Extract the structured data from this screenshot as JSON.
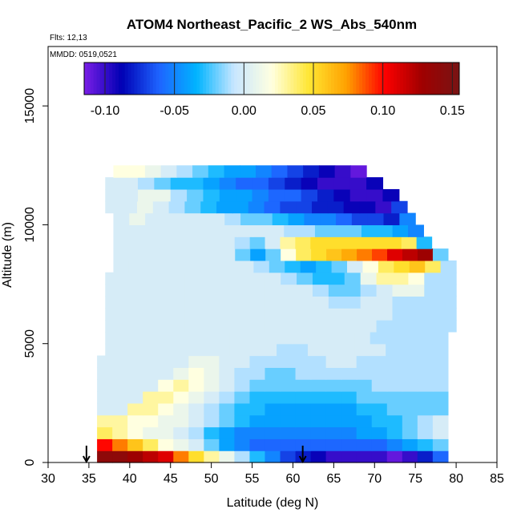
{
  "chart_data": {
    "type": "heatmap",
    "title": "ATOM4 Northeast_Pacific_2 WS_Abs_540nm",
    "notes": [
      "Flts: 12,13",
      "MMDD: 0519,0521"
    ],
    "xlabel": "Latitude (deg N)",
    "ylabel": "Altitude (m)",
    "xlim": [
      30,
      85
    ],
    "ylim": [
      0,
      17500
    ],
    "xticks": [
      30,
      35,
      40,
      45,
      50,
      55,
      60,
      65,
      70,
      75,
      80,
      85
    ],
    "yticks": [
      0,
      5000,
      10000,
      15000
    ],
    "colorbar": {
      "range": [
        -0.115,
        0.155
      ],
      "ticks": [
        -0.1,
        -0.05,
        0.0,
        0.05,
        0.1,
        0.15
      ],
      "tick_labels": [
        "-0.10",
        "-0.05",
        "0.00",
        "0.05",
        "0.10",
        "0.15"
      ],
      "colors": [
        "#7a1ee6",
        "#0000b4",
        "#1e64ff",
        "#00b4ff",
        "#c8e6ff",
        "#ffffe0",
        "#ffe632",
        "#ffa000",
        "#ff0000",
        "#a00000",
        "#781414"
      ]
    },
    "markers": [
      {
        "type": "arrow-down",
        "x": 34.7,
        "y": 0
      },
      {
        "type": "arrow-down",
        "x": 61.2,
        "y": 0
      }
    ],
    "rows": [
      {
        "y": 250,
        "xmin": 36,
        "xmax": 79,
        "values": [
          0.14,
          0.14,
          0.13,
          0.12,
          0.11,
          0.08,
          0.05,
          0.03,
          0.01,
          -0.01,
          -0.03,
          -0.05,
          -0.07,
          -0.08,
          -0.09,
          -0.1,
          -0.1,
          -0.1,
          -0.1,
          -0.11,
          -0.1,
          -0.08,
          -0.06
        ]
      },
      {
        "y": 750,
        "xmin": 36,
        "xmax": 79,
        "values": [
          0.1,
          0.08,
          0.06,
          0.04,
          0.02,
          0.01,
          0.0,
          -0.02,
          -0.04,
          -0.05,
          -0.06,
          -0.06,
          -0.06,
          -0.06,
          -0.06,
          -0.06,
          -0.06,
          -0.06,
          -0.06,
          -0.05,
          -0.04,
          -0.03,
          -0.02
        ]
      },
      {
        "y": 1250,
        "xmin": 36,
        "xmax": 79,
        "values": [
          0.04,
          0.03,
          0.02,
          0.01,
          0.01,
          0.0,
          -0.01,
          -0.03,
          -0.04,
          -0.05,
          -0.05,
          -0.05,
          -0.05,
          -0.05,
          -0.05,
          -0.05,
          -0.05,
          -0.04,
          -0.04,
          -0.03,
          -0.02,
          -0.01,
          0.0
        ]
      },
      {
        "y": 1750,
        "xmin": 36,
        "xmax": 79,
        "values": [
          0.03,
          0.03,
          0.02,
          0.02,
          0.01,
          0.01,
          0.0,
          -0.01,
          -0.02,
          -0.03,
          -0.04,
          -0.04,
          -0.04,
          -0.04,
          -0.04,
          -0.04,
          -0.04,
          -0.04,
          -0.03,
          -0.03,
          -0.02,
          -0.01,
          0.0
        ]
      },
      {
        "y": 2250,
        "xmin": 36,
        "xmax": 79,
        "values": [
          0.0,
          0.0,
          0.03,
          0.03,
          0.02,
          0.01,
          0.0,
          -0.01,
          -0.02,
          -0.03,
          -0.03,
          -0.04,
          -0.04,
          -0.04,
          -0.04,
          -0.04,
          -0.04,
          -0.03,
          -0.03,
          -0.02,
          -0.02,
          -0.02,
          -0.02
        ]
      },
      {
        "y": 2750,
        "xmin": 36,
        "xmax": 79,
        "values": [
          0.0,
          0.0,
          0.0,
          0.03,
          0.03,
          0.02,
          0.01,
          0.0,
          -0.01,
          -0.02,
          -0.03,
          -0.03,
          -0.03,
          -0.03,
          -0.03,
          -0.03,
          -0.03,
          -0.02,
          -0.02,
          -0.02,
          -0.02,
          -0.02,
          -0.02
        ]
      },
      {
        "y": 3250,
        "xmin": 36,
        "xmax": 79,
        "values": [
          0.0,
          0.0,
          0.0,
          0.0,
          0.02,
          0.03,
          0.02,
          0.01,
          0.0,
          -0.01,
          -0.02,
          -0.02,
          -0.02,
          -0.02,
          -0.02,
          -0.02,
          -0.02,
          -0.02,
          -0.01,
          -0.01,
          -0.01,
          -0.01,
          -0.01
        ]
      },
      {
        "y": 3750,
        "xmin": 36,
        "xmax": 79,
        "values": [
          0.0,
          0.0,
          0.0,
          0.0,
          0.0,
          0.01,
          0.02,
          0.01,
          0.0,
          -0.01,
          -0.01,
          -0.02,
          -0.02,
          -0.01,
          -0.01,
          -0.01,
          -0.01,
          -0.01,
          -0.01,
          -0.01,
          -0.01,
          -0.01,
          -0.01
        ]
      },
      {
        "y": 4250,
        "xmin": 36,
        "xmax": 79,
        "values": [
          0.0,
          0.0,
          0.0,
          0.0,
          0.0,
          0.0,
          0.01,
          0.01,
          0.0,
          0.0,
          -0.01,
          -0.01,
          -0.01,
          -0.01,
          -0.01,
          0.0,
          0.0,
          -0.01,
          -0.01,
          -0.01,
          -0.01,
          -0.01,
          -0.01
        ]
      },
      {
        "y": 4750,
        "xmin": 37,
        "xmax": 79,
        "values": [
          0.0,
          0.0,
          0.0,
          0.0,
          0.0,
          0.0,
          0.0,
          0.0,
          0.0,
          0.0,
          0.0,
          -0.01,
          -0.01,
          0.0,
          0.0,
          0.0,
          0.0,
          0.0,
          -0.01,
          -0.01,
          -0.01,
          -0.01
        ]
      },
      {
        "y": 5250,
        "xmin": 37,
        "xmax": 79,
        "values": [
          0.0,
          0.0,
          0.0,
          0.0,
          0.0,
          0.0,
          0.0,
          0.0,
          0.0,
          0.0,
          0.0,
          0.0,
          0.0,
          0.0,
          0.0,
          0.0,
          0.0,
          -0.01,
          -0.01,
          -0.01,
          -0.01,
          -0.01
        ]
      },
      {
        "y": 5750,
        "xmin": 37,
        "xmax": 80,
        "values": [
          0.0,
          0.0,
          0.0,
          0.0,
          0.0,
          0.0,
          0.0,
          0.0,
          0.0,
          0.0,
          0.0,
          0.0,
          0.0,
          0.0,
          0.0,
          0.0,
          0.0,
          -0.01,
          -0.01,
          -0.01,
          -0.01,
          -0.01
        ]
      },
      {
        "y": 6250,
        "xmin": 37,
        "xmax": 80,
        "values": [
          0.0,
          0.0,
          0.0,
          0.0,
          0.0,
          0.0,
          0.0,
          0.0,
          0.0,
          0.0,
          0.0,
          0.0,
          0.0,
          0.0,
          0.0,
          0.0,
          0.0,
          0.0,
          -0.01,
          -0.01,
          -0.01,
          -0.01
        ]
      },
      {
        "y": 6750,
        "xmin": 37,
        "xmax": 80,
        "values": [
          0.0,
          0.0,
          0.0,
          0.0,
          0.0,
          0.0,
          0.0,
          0.0,
          0.0,
          0.0,
          0.0,
          0.0,
          0.0,
          0.0,
          -0.01,
          -0.01,
          0.0,
          0.0,
          -0.01,
          -0.01,
          -0.01,
          -0.01
        ]
      },
      {
        "y": 7250,
        "xmin": 37,
        "xmax": 80,
        "values": [
          0.0,
          0.0,
          0.0,
          0.0,
          0.0,
          0.0,
          0.0,
          0.0,
          0.0,
          0.0,
          0.0,
          0.0,
          0.0,
          -0.01,
          -0.02,
          -0.02,
          -0.01,
          0.0,
          0.01,
          0.01,
          -0.01,
          -0.01
        ]
      },
      {
        "y": 7750,
        "xmin": 37,
        "xmax": 80,
        "values": [
          0.0,
          0.0,
          0.0,
          0.0,
          0.0,
          0.0,
          0.0,
          0.0,
          0.0,
          0.0,
          0.0,
          -0.01,
          -0.02,
          -0.03,
          -0.03,
          -0.02,
          0.01,
          0.03,
          0.03,
          0.02,
          -0.01,
          -0.01
        ]
      },
      {
        "y": 8250,
        "xmin": 38,
        "xmax": 80,
        "values": [
          0.0,
          0.0,
          0.0,
          0.0,
          0.0,
          0.0,
          0.0,
          0.0,
          0.0,
          -0.01,
          -0.02,
          -0.03,
          -0.04,
          -0.03,
          -0.02,
          0.0,
          0.02,
          0.04,
          0.05,
          0.06,
          0.04,
          -0.01
        ]
      },
      {
        "y": 8750,
        "xmin": 38,
        "xmax": 79,
        "values": [
          0.0,
          0.0,
          0.0,
          0.0,
          0.0,
          0.0,
          0.0,
          0.0,
          -0.02,
          -0.04,
          -0.02,
          0.02,
          0.04,
          0.05,
          0.06,
          0.07,
          0.08,
          0.09,
          0.11,
          0.12,
          0.13,
          -0.02
        ]
      },
      {
        "y": 9250,
        "xmin": 38,
        "xmax": 77,
        "values": [
          0.0,
          0.0,
          0.0,
          0.0,
          0.0,
          0.0,
          0.0,
          0.0,
          -0.01,
          -0.02,
          0.0,
          0.03,
          0.04,
          0.05,
          0.05,
          0.05,
          0.05,
          0.05,
          0.05,
          0.04,
          -0.03
        ]
      },
      {
        "y": 9750,
        "xmin": 38,
        "xmax": 76,
        "values": [
          0.0,
          0.0,
          0.0,
          0.0,
          0.0,
          0.0,
          0.0,
          0.0,
          0.0,
          0.0,
          0.0,
          -0.01,
          -0.01,
          -0.02,
          -0.02,
          -0.02,
          -0.03,
          -0.03,
          -0.04,
          -0.05
        ]
      },
      {
        "y": 10250,
        "xmin": 38,
        "xmax": 75,
        "values": [
          0.0,
          0.01,
          0.0,
          0.0,
          0.0,
          0.0,
          0.0,
          -0.01,
          -0.02,
          -0.02,
          -0.03,
          -0.04,
          -0.05,
          -0.05,
          -0.06,
          -0.07,
          -0.07,
          -0.08,
          -0.05
        ]
      },
      {
        "y": 10750,
        "xmin": 37,
        "xmax": 74,
        "values": [
          0.0,
          0.0,
          0.01,
          0.0,
          -0.01,
          -0.02,
          -0.03,
          -0.04,
          -0.04,
          -0.05,
          -0.06,
          -0.07,
          -0.07,
          -0.08,
          -0.08,
          -0.09,
          -0.09,
          -0.1,
          -0.07
        ]
      },
      {
        "y": 11250,
        "xmin": 37,
        "xmax": 73,
        "values": [
          0.0,
          0.0,
          0.01,
          0.01,
          -0.01,
          -0.02,
          -0.03,
          -0.04,
          -0.04,
          -0.05,
          -0.06,
          -0.06,
          -0.07,
          -0.08,
          -0.09,
          -0.1,
          -0.1,
          -0.09
        ]
      },
      {
        "y": 11750,
        "xmin": 37,
        "xmax": 71,
        "values": [
          0.0,
          0.0,
          -0.01,
          -0.02,
          -0.03,
          -0.03,
          -0.04,
          -0.05,
          -0.06,
          -0.06,
          -0.07,
          -0.08,
          -0.09,
          -0.1,
          -0.1,
          -0.1,
          -0.09
        ]
      },
      {
        "y": 12250,
        "xmin": 38,
        "xmax": 69,
        "values": [
          0.02,
          0.02,
          0.01,
          0.0,
          -0.01,
          -0.02,
          -0.03,
          -0.04,
          -0.04,
          -0.05,
          -0.06,
          -0.07,
          -0.08,
          -0.09,
          -0.1,
          -0.11
        ]
      }
    ]
  }
}
